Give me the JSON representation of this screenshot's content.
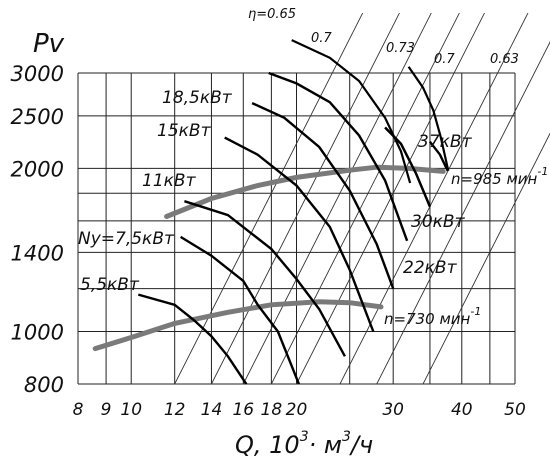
{
  "chart_data": {
    "type": "line",
    "title": "",
    "xlabel": "Q, 10³· м³/ч",
    "ylabel": "Pv",
    "x_scale": "log",
    "y_scale": "log",
    "xlim": [
      8,
      50
    ],
    "ylim": [
      800,
      3000
    ],
    "x_ticks": [
      8,
      9,
      10,
      12,
      14,
      16,
      18,
      20,
      30,
      40,
      50
    ],
    "y_ticks": [
      800,
      1000,
      1400,
      2000,
      2500,
      3000
    ],
    "grid": true,
    "speed_curves": [
      {
        "name": "n=985 мин⁻¹",
        "points": [
          [
            11.6,
            1630
          ],
          [
            14,
            1760
          ],
          [
            17,
            1860
          ],
          [
            20,
            1925
          ],
          [
            25,
            1985
          ],
          [
            28,
            2010
          ],
          [
            32,
            2000
          ],
          [
            37,
            1975
          ]
        ]
      },
      {
        "name": "n=730 мин⁻¹",
        "points": [
          [
            8.6,
            930
          ],
          [
            10,
            975
          ],
          [
            12,
            1035
          ],
          [
            15,
            1085
          ],
          [
            18,
            1120
          ],
          [
            22,
            1135
          ],
          [
            25,
            1130
          ],
          [
            28.5,
            1110
          ]
        ]
      }
    ],
    "power_curves": [
      {
        "name": "5,5кВт",
        "points": [
          [
            10.3,
            1170
          ],
          [
            12,
            1120
          ],
          [
            13,
            1050
          ],
          [
            14,
            980
          ],
          [
            15,
            900
          ],
          [
            16.2,
            800
          ]
        ]
      },
      {
        "name": "Ny=7,5кВт",
        "points": [
          [
            12.3,
            1495
          ],
          [
            14,
            1380
          ],
          [
            16,
            1240
          ],
          [
            17,
            1120
          ],
          [
            18.5,
            1000
          ],
          [
            20.2,
            800
          ]
        ]
      },
      {
        "name": "11кВт",
        "points": [
          [
            12.5,
            1740
          ],
          [
            15,
            1640
          ],
          [
            18,
            1420
          ],
          [
            20,
            1250
          ],
          [
            22,
            1100
          ],
          [
            24.5,
            900
          ]
        ]
      },
      {
        "name": "15кВт",
        "points": [
          [
            14.8,
            2280
          ],
          [
            17,
            2120
          ],
          [
            20,
            1860
          ],
          [
            23,
            1560
          ],
          [
            25,
            1300
          ],
          [
            27.6,
            1000
          ]
        ]
      },
      {
        "name": "18,5кВт",
        "points": [
          [
            16.6,
            2640
          ],
          [
            19,
            2480
          ],
          [
            22,
            2190
          ],
          [
            25,
            1820
          ],
          [
            28,
            1450
          ],
          [
            30,
            1200
          ]
        ]
      },
      {
        "name": "22кВт",
        "points": [
          [
            17.8,
            3000
          ],
          [
            20,
            2870
          ],
          [
            23,
            2650
          ],
          [
            26,
            2300
          ],
          [
            29,
            1900
          ],
          [
            31.8,
            1470
          ]
        ]
      },
      {
        "name": "30кВт",
        "points": [
          [
            29,
            2380
          ],
          [
            31,
            2220
          ],
          [
            33,
            1960
          ],
          [
            35,
            1700
          ]
        ]
      },
      {
        "name": "37кВт",
        "points": [
          [
            35,
            2240
          ],
          [
            36.5,
            2120
          ],
          [
            37.7,
            1980
          ]
        ]
      }
    ],
    "efficiency_lines": [
      {
        "name": "η=0.65",
        "points": [
          [
            19.6,
            3450
          ],
          [
            23,
            3200
          ],
          [
            26,
            2900
          ],
          [
            29,
            2480
          ],
          [
            31,
            2150
          ],
          [
            32.2,
            1880
          ]
        ]
      },
      {
        "name": "0.7",
        "points": [
          [
            29,
            2380
          ],
          [
            31,
            2220
          ],
          [
            33,
            1960
          ],
          [
            35,
            1700
          ]
        ]
      },
      {
        "name": "0.73",
        "points": [
          [
            32,
            3080
          ],
          [
            34,
            2820
          ],
          [
            35.5,
            2560
          ],
          [
            36.6,
            2290
          ],
          [
            37.8,
            1980
          ]
        ]
      }
    ],
    "labels": {
      "eta": "η=0.65",
      "eff_07_a": "0.7",
      "eff_073": "0.73",
      "eff_07_b": "0.7",
      "eff_063": "0.63",
      "p185": "18,5кВт",
      "p15": "15кВт",
      "p11": "11кВт",
      "p75": "Ny=7,5кВт",
      "p55": "5,5кВт",
      "p37": "37кВт",
      "p30": "30кВт",
      "p22": "22кВт",
      "n985": "n=985 мин",
      "n985_exp": "-1",
      "n730": "n=730 мин",
      "n730_exp": "-1"
    },
    "axis_title_x": "Q, 10",
    "axis_title_x_exp1": "3",
    "axis_title_x_mid": "· м",
    "axis_title_x_exp2": "3",
    "axis_title_x_end": "/ч",
    "axis_title_y": "Pv"
  }
}
